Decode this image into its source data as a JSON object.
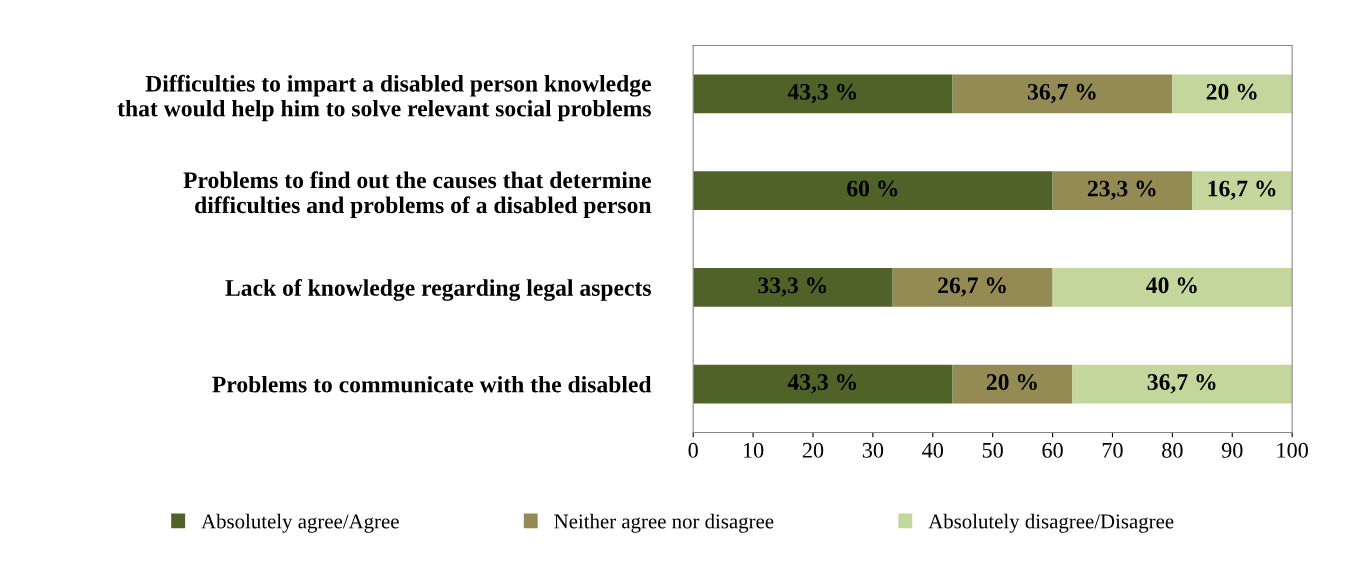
{
  "chart_data": {
    "type": "bar",
    "orientation": "horizontal",
    "stacked": true,
    "categories": [
      "Difficulties to impart a disabled person knowledge\nthat would help him to solve relevant social problems",
      "Problems to find out the causes that determine\ndifficulties and problems of a disabled person",
      "Lack of knowledge regarding legal aspects",
      "Problems to communicate with the disabled"
    ],
    "series": [
      {
        "name": "Absolutely agree/Agree",
        "color": "#4f6228",
        "values": [
          43.3,
          60,
          33.3,
          43.3
        ],
        "value_labels": [
          "43,3 %",
          "60 %",
          "33,3 %",
          "43,3 %"
        ]
      },
      {
        "name": "Neither agree nor disagree",
        "color": "#948a54",
        "values": [
          36.7,
          23.3,
          26.7,
          20
        ],
        "value_labels": [
          "36,7 %",
          "23,3 %",
          "26,7 %",
          "20 %"
        ]
      },
      {
        "name": "Absolutely disagree/Disagree",
        "color": "#c3d69b",
        "values": [
          20,
          16.7,
          40,
          36.7
        ],
        "value_labels": [
          "20 %",
          "16,7 %",
          "40 %",
          "36,7 %"
        ]
      }
    ],
    "xlim": [
      0,
      100
    ],
    "xticks": [
      0,
      10,
      20,
      30,
      40,
      50,
      60,
      70,
      80,
      90,
      100
    ],
    "grid": false,
    "legend": "bottom"
  }
}
